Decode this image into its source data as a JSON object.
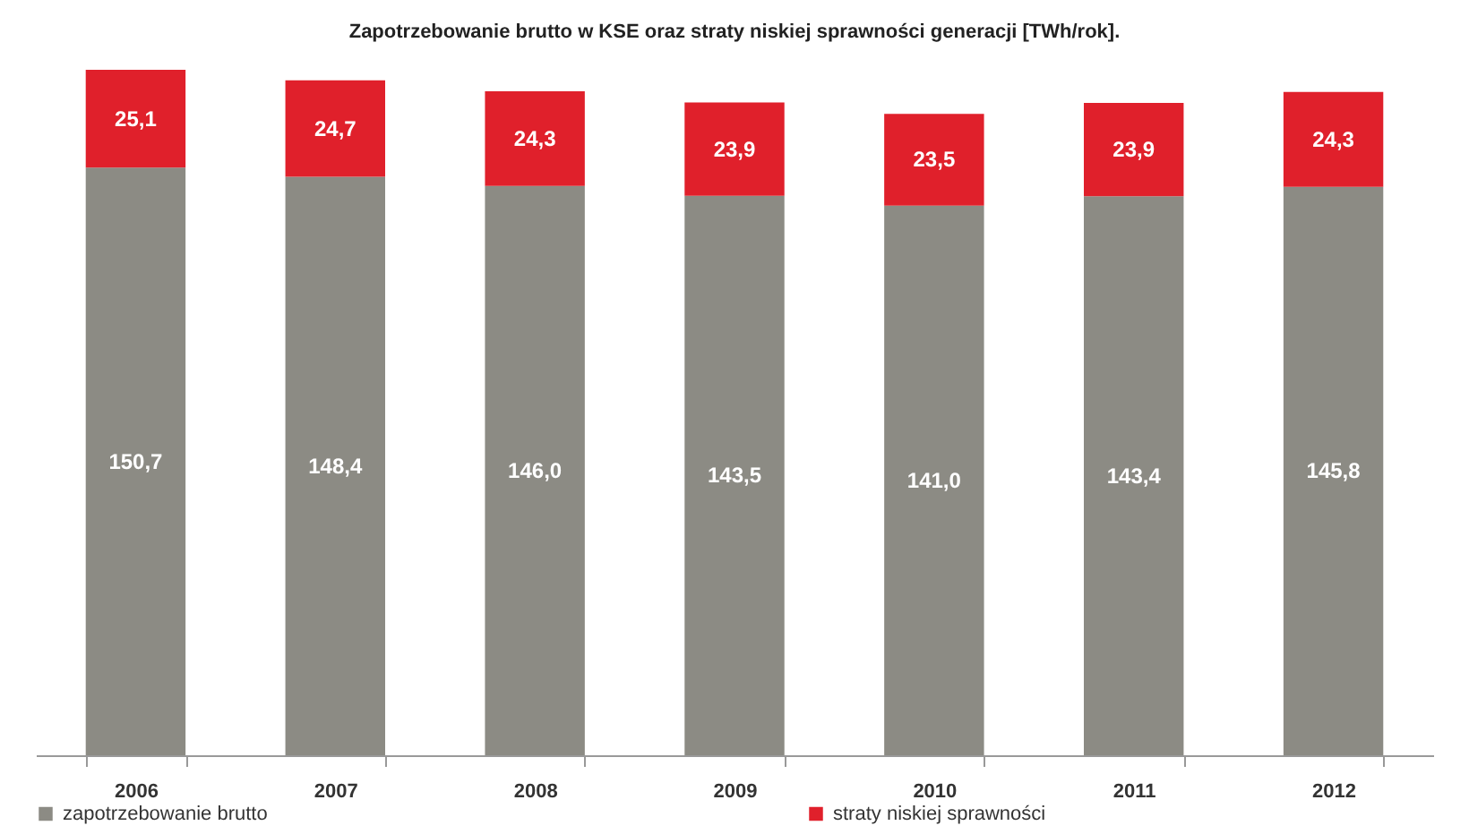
{
  "chart_data": {
    "type": "bar",
    "title": "Zapotrzebowanie brutto w KSE oraz straty niskiej sprawności generacji [TWh/rok].",
    "categories": [
      "2006",
      "2007",
      "2008",
      "2009",
      "2010",
      "2011",
      "2012"
    ],
    "stacked": true,
    "legend": "bottom",
    "series": [
      {
        "name": "zapotrzebowanie brutto",
        "color": "#8c8b84",
        "values": [
          150.7,
          148.4,
          146.0,
          143.5,
          141.0,
          143.4,
          145.8
        ],
        "value_labels": [
          "150,7",
          "148,4",
          "146,0",
          "143,5",
          "141,0",
          "143,4",
          "145,8"
        ]
      },
      {
        "name": "straty niskiej sprawności",
        "color": "#e0202b",
        "values": [
          25.1,
          24.7,
          24.3,
          23.9,
          23.5,
          23.9,
          24.3
        ],
        "value_labels": [
          "25,1",
          "24,7",
          "24,3",
          "23,9",
          "23,5",
          "23,9",
          "24,3"
        ]
      }
    ]
  }
}
